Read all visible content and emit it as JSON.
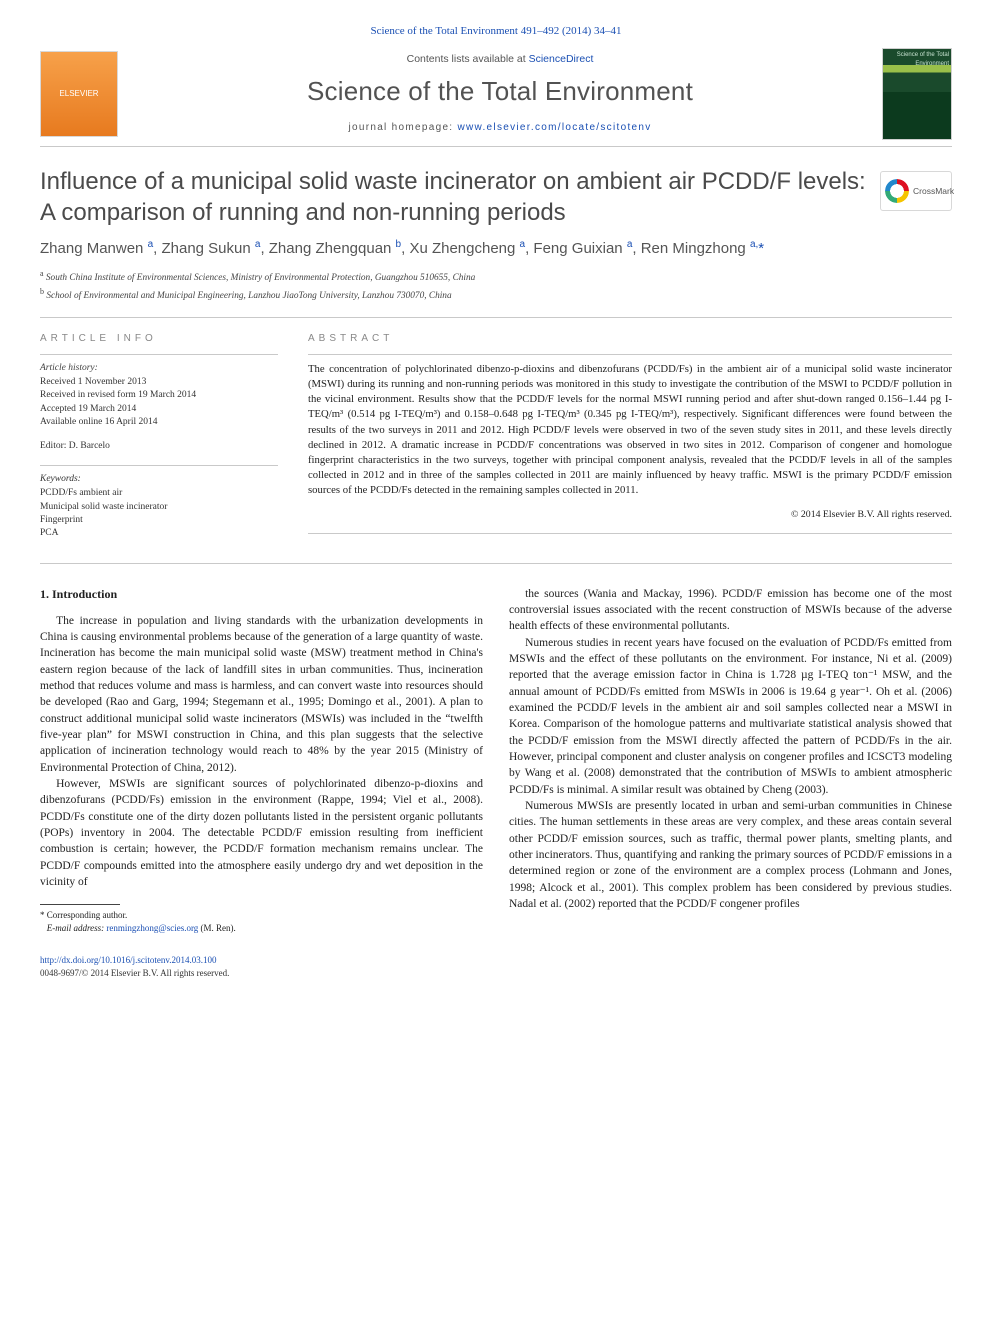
{
  "top_citation": "Science of the Total Environment 491–492 (2014) 34–41",
  "masthead": {
    "left_logo_alt": "ELSEVIER",
    "contents_prefix": "Contents lists available at ",
    "contents_link": "ScienceDirect",
    "journal_name": "Science of the Total Environment",
    "homepage_label": "journal homepage: ",
    "homepage_url": "www.elsevier.com/locate/scitotenv"
  },
  "crossmark_label": "CrossMark",
  "title": "Influence of a municipal solid waste incinerator on ambient air PCDD/F levels: A comparison of running and non-running periods",
  "authors_html": "Zhang Manwen <sup>a</sup>, Zhang Sukun <sup>a</sup>, Zhang Zhengquan <sup>b</sup>, Xu Zhengcheng <sup>a</sup>, Feng Guixian <sup>a</sup>, Ren Mingzhong <sup>a,</sup><span class='star'>*</span>",
  "affiliations": {
    "a": "South China Institute of Environmental Sciences, Ministry of Environmental Protection, Guangzhou 510655, China",
    "b": "School of Environmental and Municipal Engineering, Lanzhou JiaoTong University, Lanzhou 730070, China"
  },
  "article_info": {
    "heading": "ARTICLE INFO",
    "history_heading": "Article history:",
    "history": [
      "Received 1 November 2013",
      "Received in revised form 19 March 2014",
      "Accepted 19 March 2014",
      "Available online 16 April 2014"
    ],
    "editor": "Editor: D. Barcelo",
    "keywords_heading": "Keywords:",
    "keywords": [
      "PCDD/Fs ambient air",
      "Municipal solid waste incinerator",
      "Fingerprint",
      "PCA"
    ]
  },
  "abstract": {
    "heading": "ABSTRACT",
    "text": "The concentration of polychlorinated dibenzo-p-dioxins and dibenzofurans (PCDD/Fs) in the ambient air of a municipal solid waste incinerator (MSWI) during its running and non-running periods was monitored in this study to investigate the contribution of the MSWI to PCDD/F pollution in the vicinal environment. Results show that the PCDD/F levels for the normal MSWI running period and after shut-down ranged 0.156–1.44 pg I-TEQ/m³ (0.514 pg I-TEQ/m³) and 0.158–0.648 pg I-TEQ/m³ (0.345 pg I-TEQ/m³), respectively. Significant differences were found between the results of the two surveys in 2011 and 2012. High PCDD/F levels were observed in two of the seven study sites in 2011, and these levels directly declined in 2012. A dramatic increase in PCDD/F concentrations was observed in two sites in 2012. Comparison of congener and homologue fingerprint characteristics in the two surveys, together with principal component analysis, revealed that the PCDD/F levels in all of the samples collected in 2012 and in three of the samples collected in 2011 are mainly influenced by heavy traffic. MSWI is the primary PCDD/F emission sources of the PCDD/Fs detected in the remaining samples collected in 2011.",
    "copyright": "© 2014 Elsevier B.V. All rights reserved."
  },
  "intro": {
    "heading": "1. Introduction",
    "p1": "The increase in population and living standards with the urbanization developments in China is causing environmental problems because of the generation of a large quantity of waste. Incineration has become the main municipal solid waste (MSW) treatment method in China's eastern region because of the lack of landfill sites in urban communities. Thus, incineration method that reduces volume and mass is harmless, and can convert waste into resources should be developed (Rao and Garg, 1994; Stegemann et al., 1995; Domingo et al., 2001). A plan to construct additional municipal solid waste incinerators (MSWIs) was included in the “twelfth five-year plan” for MSWI construction in China, and this plan suggests that the selective application of incineration technology would reach to 48% by the year 2015 (Ministry of Environmental Protection of China, 2012).",
    "p2": "However, MSWIs are significant sources of polychlorinated dibenzo-p-dioxins and dibenzofurans (PCDD/Fs) emission in the environment (Rappe, 1994; Viel et al., 2008). PCDD/Fs constitute one of the dirty dozen pollutants listed in the persistent organic pollutants (POPs) inventory in 2004. The detectable PCDD/F emission resulting from inefficient combustion is certain; however, the PCDD/F formation mechanism remains unclear. The PCDD/F compounds emitted into the atmosphere easily undergo dry and wet deposition in the vicinity of",
    "p3": "the sources (Wania and Mackay, 1996). PCDD/F emission has become one of the most controversial issues associated with the recent construction of MSWIs because of the adverse health effects of these environmental pollutants.",
    "p4": "Numerous studies in recent years have focused on the evaluation of PCDD/Fs emitted from MSWIs and the effect of these pollutants on the environment. For instance, Ni et al. (2009) reported that the average emission factor in China is 1.728 µg I-TEQ ton⁻¹ MSW, and the annual amount of PCDD/Fs emitted from MSWIs in 2006 is 19.64 g year⁻¹. Oh et al. (2006) examined the PCDD/F levels in the ambient air and soil samples collected near a MSWI in Korea. Comparison of the homologue patterns and multivariate statistical analysis showed that the PCDD/F emission from the MSWI directly affected the pattern of PCDD/Fs in the air. However, principal component and cluster analysis on congener profiles and ICSCT3 modeling by Wang et al. (2008) demonstrated that the contribution of MSWIs to ambient atmospheric PCDD/Fs is minimal. A similar result was obtained by Cheng (2003).",
    "p5": "Numerous MWSIs are presently located in urban and semi-urban communities in Chinese cities. The human settlements in these areas are very complex, and these areas contain several other PCDD/F emission sources, such as traffic, thermal power plants, smelting plants, and other incinerators. Thus, quantifying and ranking the primary sources of PCDD/F emissions in a determined region or zone of the environment are a complex process (Lohmann and Jones, 1998; Alcock et al., 2001). This complex problem has been considered by previous studies. Nadal et al. (2002) reported that the PCDD/F congener profiles"
  },
  "footnote": {
    "corr_label": "* Corresponding author.",
    "email_label": "E-mail address:",
    "email": "renmingzhong@scies.org",
    "email_suffix": "(M. Ren)."
  },
  "doi": {
    "url": "http://dx.doi.org/10.1016/j.scitotenv.2014.03.100",
    "issn_line": "0048-9697/© 2014 Elsevier B.V. All rights reserved."
  },
  "colors": {
    "link": "#1a4fb3",
    "heading_grey": "#888",
    "text": "#222",
    "rule": "#c9c9c9"
  }
}
